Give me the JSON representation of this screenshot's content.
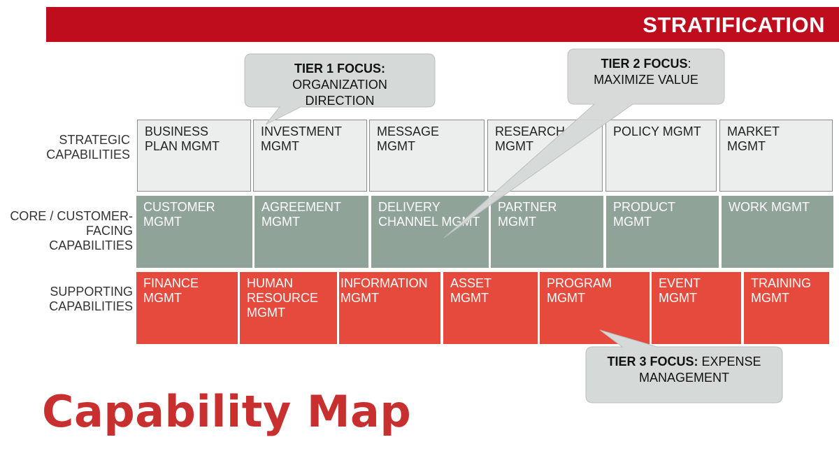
{
  "header": {
    "title": "STRATIFICATION"
  },
  "rows": [
    {
      "id": "strategic",
      "label_lines": [
        "STRATEGIC",
        "CAPABILITIES"
      ]
    },
    {
      "id": "core",
      "label_lines": [
        "CORE / CUSTOMER-",
        "FACING",
        "CAPABILITIES"
      ]
    },
    {
      "id": "supporting",
      "label_lines": [
        "SUPPORTING",
        "CAPABILITIES"
      ]
    }
  ],
  "strategic_cells": [
    "BUSINESS\nPLAN MGMT",
    "INVESTMENT\nMGMT",
    "MESSAGE\nMGMT",
    "RESEARCH\nMGMT",
    "POLICY MGMT",
    "MARKET\nMGMT"
  ],
  "core_cells": [
    "CUSTOMER\nMGMT",
    "AGREEMENT\nMGMT",
    "DELIVERY\nCHANNEL MGMT",
    "PARTNER\nMGMT",
    "PRODUCT\nMGMT",
    "WORK MGMT"
  ],
  "supporting_cells": [
    "FINANCE\nMGMT",
    "HUMAN\nRESOURCE\nMGMT",
    "INFORMATION\nMGMT",
    "ASSET\nMGMT",
    "PROGRAM\nMGMT",
    "EVENT\nMGMT",
    "TRAINING\nMGMT"
  ],
  "callouts": {
    "tier1": {
      "bold": "TIER 1 FOCUS:",
      "lines": [
        "ORGANIZATION",
        "DIRECTION"
      ]
    },
    "tier2": {
      "bold": "TIER 2 FOCUS",
      "bold_suffix": ":",
      "lines": [
        "MAXIMIZE VALUE"
      ]
    },
    "tier3": {
      "bold": "TIER 3 FOCUS:",
      "inline": " EXPENSE",
      "lines": [
        "MANAGEMENT"
      ]
    }
  },
  "page_title": "Capability Map",
  "colors": {
    "banner": "#bf0d1e",
    "strategic": "#eceeee",
    "core": "#8fa398",
    "supporting": "#e64a3c",
    "title": "#c8302f",
    "callout": "#d5d9d8"
  }
}
